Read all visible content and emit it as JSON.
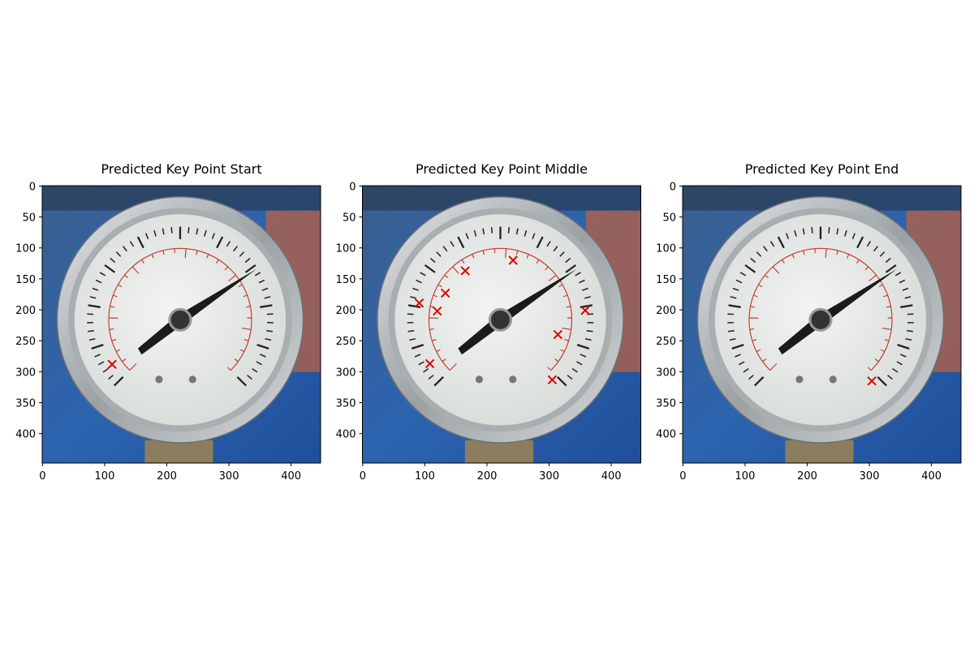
{
  "chart_data": [
    {
      "type": "scatter",
      "title": "Predicted Key Point Start",
      "marker": "x",
      "color": "#e00000",
      "x": [
        112
      ],
      "values": [
        288
      ],
      "xlim": [
        -0.5,
        447.5
      ],
      "ylim": [
        447.5,
        -0.5
      ],
      "xticks": [
        0,
        100,
        200,
        300,
        400
      ],
      "yticks": [
        0,
        50,
        100,
        150,
        200,
        250,
        300,
        350,
        400
      ]
    },
    {
      "type": "scatter",
      "title": "Predicted Key Point Middle",
      "marker": "x",
      "color": "#e00000",
      "x": [
        108,
        91,
        120,
        133,
        165,
        242,
        358,
        314,
        305
      ],
      "values": [
        287,
        189,
        202,
        173,
        137,
        120,
        201,
        240,
        313
      ],
      "xlim": [
        -0.5,
        447.5
      ],
      "ylim": [
        447.5,
        -0.5
      ],
      "xticks": [
        0,
        100,
        200,
        300,
        400
      ],
      "yticks": [
        0,
        50,
        100,
        150,
        200,
        250,
        300,
        350,
        400
      ]
    },
    {
      "type": "scatter",
      "title": "Predicted Key Point End",
      "marker": "x",
      "color": "#e00000",
      "x": [
        304
      ],
      "values": [
        315
      ],
      "xlim": [
        -0.5,
        447.5
      ],
      "ylim": [
        447.5,
        -0.5
      ],
      "xticks": [
        0,
        100,
        200,
        300,
        400
      ],
      "yticks": [
        0,
        50,
        100,
        150,
        200,
        250,
        300,
        350,
        400
      ]
    }
  ]
}
